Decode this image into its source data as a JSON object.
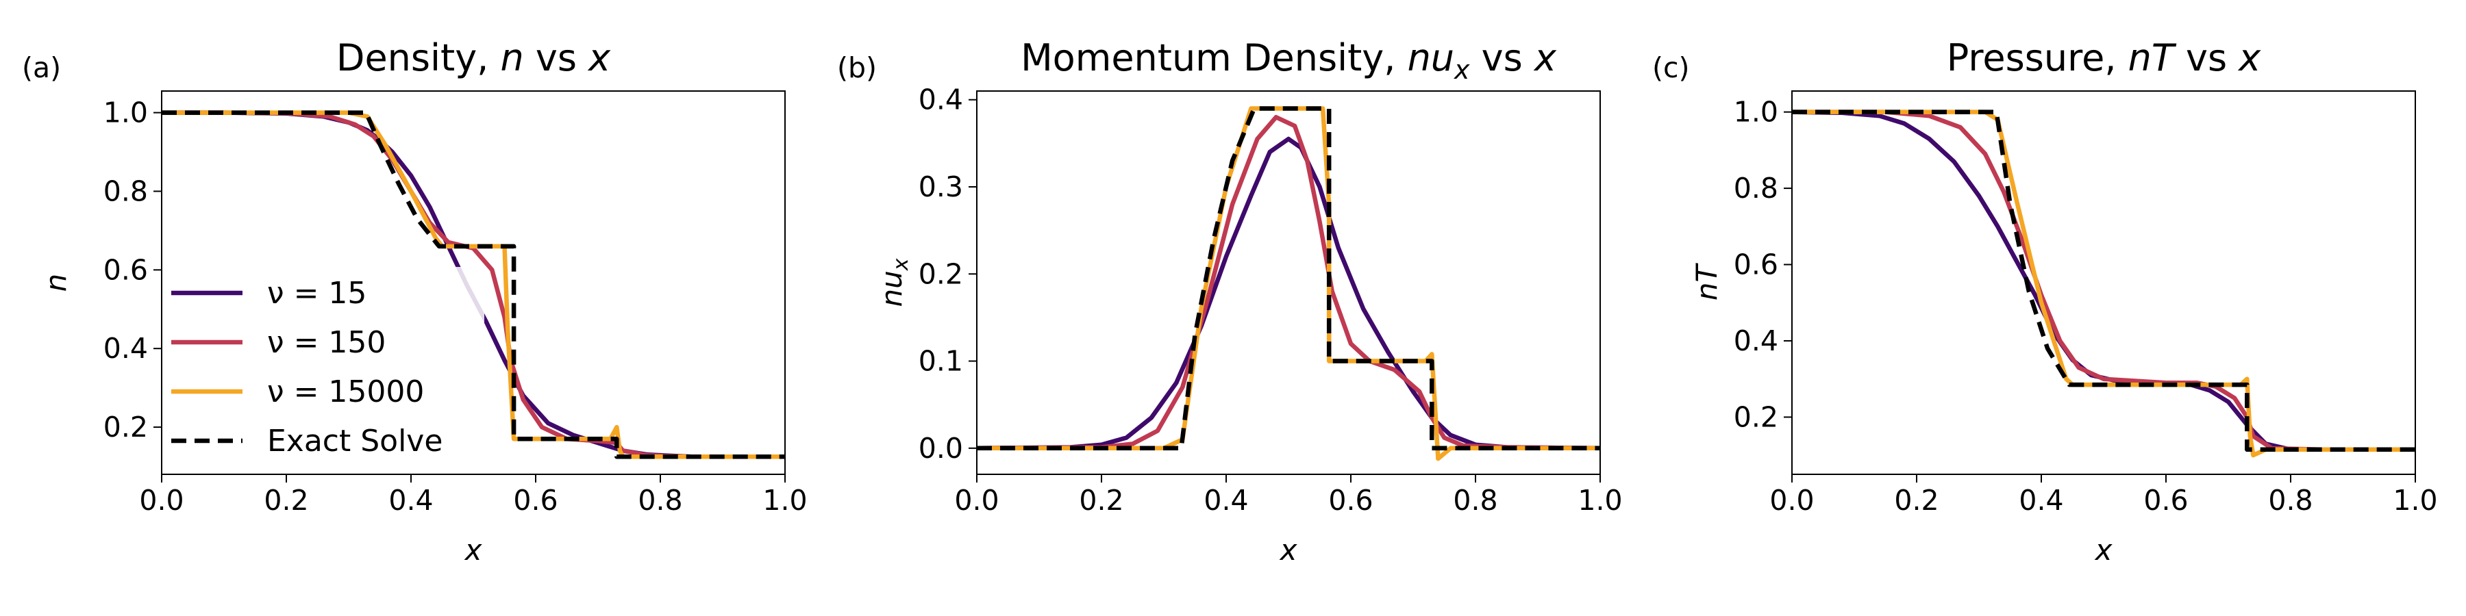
{
  "colors": {
    "nu15": "#3f0a6b",
    "nu150": "#c03a52",
    "nu15000": "#f5a623",
    "exact": "#000000"
  },
  "chart_data": [
    {
      "type": "line",
      "panel_label": "(a)",
      "title": {
        "pre": "Density, ",
        "var": "n",
        "var_sub": "",
        "post": " vs ",
        "xvar": "x"
      },
      "xlabel": "x",
      "ylabel": {
        "var": "n",
        "sub": ""
      },
      "xlim": [
        0.0,
        1.0
      ],
      "ylim": [
        0.08,
        1.055
      ],
      "xticks": [
        "0.0",
        "0.2",
        "0.4",
        "0.6",
        "0.8",
        "1.0"
      ],
      "yticks": [
        "0.2",
        "0.4",
        "0.6",
        "0.8",
        "1.0"
      ],
      "legend": {
        "placement": "lower-left",
        "entries": [
          {
            "key": "nu15",
            "label": "ν = 15"
          },
          {
            "key": "nu150",
            "label": "ν = 150"
          },
          {
            "key": "nu15000",
            "label": "ν = 15000"
          },
          {
            "key": "exact",
            "label": "Exact Solve"
          }
        ]
      },
      "series": [
        {
          "key": "nu15",
          "x": [
            0,
            0.1,
            0.2,
            0.26,
            0.3,
            0.33,
            0.35,
            0.37,
            0.4,
            0.43,
            0.46,
            0.49,
            0.52,
            0.55,
            0.58,
            0.62,
            0.66,
            0.7,
            0.74,
            0.78,
            0.85,
            1.0
          ],
          "y": [
            1.0,
            1.0,
            0.998,
            0.99,
            0.975,
            0.955,
            0.93,
            0.9,
            0.84,
            0.76,
            0.66,
            0.56,
            0.47,
            0.37,
            0.28,
            0.21,
            0.18,
            0.16,
            0.14,
            0.13,
            0.125,
            0.125
          ]
        },
        {
          "key": "nu150",
          "x": [
            0,
            0.1,
            0.2,
            0.27,
            0.31,
            0.34,
            0.37,
            0.4,
            0.43,
            0.46,
            0.5,
            0.53,
            0.55,
            0.56,
            0.58,
            0.61,
            0.65,
            0.7,
            0.73,
            0.74,
            0.78,
            0.85,
            1.0
          ],
          "y": [
            1.0,
            1.0,
            0.999,
            0.99,
            0.97,
            0.94,
            0.88,
            0.8,
            0.72,
            0.67,
            0.655,
            0.6,
            0.48,
            0.37,
            0.27,
            0.2,
            0.17,
            0.165,
            0.16,
            0.14,
            0.128,
            0.125,
            0.125
          ]
        },
        {
          "key": "nu15000",
          "x": [
            0,
            0.15,
            0.25,
            0.3,
            0.33,
            0.36,
            0.4,
            0.44,
            0.45,
            0.55,
            0.555,
            0.565,
            0.57,
            0.64,
            0.72,
            0.73,
            0.735,
            0.74,
            0.76,
            0.85,
            1.0
          ],
          "y": [
            1.0,
            1.0,
            1.0,
            1.0,
            0.99,
            0.915,
            0.8,
            0.68,
            0.66,
            0.66,
            0.45,
            0.17,
            0.17,
            0.17,
            0.17,
            0.2,
            0.14,
            0.125,
            0.125,
            0.125,
            0.125
          ]
        },
        {
          "key": "exact",
          "x": [
            0,
            0.328,
            0.35,
            0.38,
            0.41,
            0.445,
            0.565,
            0.565,
            0.73,
            0.73,
            1.0
          ],
          "y": [
            1.0,
            1.0,
            0.92,
            0.82,
            0.73,
            0.66,
            0.66,
            0.17,
            0.17,
            0.125,
            0.125
          ]
        }
      ]
    },
    {
      "type": "line",
      "panel_label": "(b)",
      "title": {
        "pre": "Momentum Density, ",
        "var": "nu",
        "var_sub": "x",
        "post": " vs ",
        "xvar": "x"
      },
      "xlabel": "x",
      "ylabel": {
        "var": "nu",
        "sub": "x"
      },
      "xlim": [
        0.0,
        1.0
      ],
      "ylim": [
        -0.03,
        0.41
      ],
      "xticks": [
        "0.0",
        "0.2",
        "0.4",
        "0.6",
        "0.8",
        "1.0"
      ],
      "yticks": [
        "0.0",
        "0.1",
        "0.2",
        "0.3",
        "0.4"
      ],
      "series": [
        {
          "key": "nu15",
          "x": [
            0,
            0.15,
            0.2,
            0.24,
            0.28,
            0.32,
            0.36,
            0.4,
            0.44,
            0.47,
            0.5,
            0.52,
            0.55,
            0.58,
            0.62,
            0.66,
            0.7,
            0.73,
            0.76,
            0.8,
            0.85,
            1.0
          ],
          "y": [
            0,
            0.001,
            0.004,
            0.012,
            0.035,
            0.075,
            0.14,
            0.22,
            0.29,
            0.34,
            0.355,
            0.345,
            0.3,
            0.23,
            0.16,
            0.11,
            0.065,
            0.035,
            0.015,
            0.004,
            0.001,
            0
          ]
        },
        {
          "key": "nu150",
          "x": [
            0,
            0.2,
            0.25,
            0.29,
            0.33,
            0.37,
            0.41,
            0.45,
            0.48,
            0.51,
            0.53,
            0.55,
            0.57,
            0.6,
            0.63,
            0.67,
            0.71,
            0.73,
            0.75,
            0.78,
            0.85,
            1.0
          ],
          "y": [
            0,
            0.001,
            0.005,
            0.02,
            0.07,
            0.17,
            0.28,
            0.355,
            0.38,
            0.37,
            0.33,
            0.26,
            0.18,
            0.12,
            0.1,
            0.09,
            0.065,
            0.035,
            0.012,
            0.003,
            0.001,
            0
          ]
        },
        {
          "key": "nu15000",
          "x": [
            0,
            0.3,
            0.33,
            0.36,
            0.4,
            0.44,
            0.555,
            0.565,
            0.565,
            0.72,
            0.73,
            0.735,
            0.74,
            0.76,
            1.0
          ],
          "y": [
            0,
            0,
            0.01,
            0.16,
            0.3,
            0.39,
            0.39,
            0.28,
            0.1,
            0.1,
            0.108,
            0.05,
            -0.012,
            0,
            0
          ]
        },
        {
          "key": "exact",
          "x": [
            0,
            0.328,
            0.35,
            0.38,
            0.41,
            0.445,
            0.565,
            0.565,
            0.73,
            0.73,
            1.0
          ],
          "y": [
            0,
            0,
            0.13,
            0.24,
            0.33,
            0.39,
            0.39,
            0.1,
            0.1,
            0,
            0
          ]
        }
      ]
    },
    {
      "type": "line",
      "panel_label": "(c)",
      "title": {
        "pre": "Pressure, ",
        "var": "nT",
        "var_sub": "",
        "post": " vs ",
        "xvar": "x"
      },
      "xlabel": "x",
      "ylabel": {
        "var": "nT",
        "sub": ""
      },
      "xlim": [
        0.0,
        1.0
      ],
      "ylim": [
        0.05,
        1.055
      ],
      "xticks": [
        "0.0",
        "0.2",
        "0.4",
        "0.6",
        "0.8",
        "1.0"
      ],
      "yticks": [
        "0.2",
        "0.4",
        "0.6",
        "0.8",
        "1.0"
      ],
      "series": [
        {
          "key": "nu15",
          "x": [
            0,
            0.08,
            0.14,
            0.18,
            0.22,
            0.26,
            0.3,
            0.33,
            0.36,
            0.39,
            0.42,
            0.45,
            0.48,
            0.52,
            0.56,
            0.6,
            0.64,
            0.67,
            0.7,
            0.73,
            0.76,
            0.8,
            1.0
          ],
          "y": [
            1.0,
            0.998,
            0.99,
            0.97,
            0.93,
            0.87,
            0.78,
            0.7,
            0.61,
            0.52,
            0.42,
            0.35,
            0.31,
            0.295,
            0.29,
            0.29,
            0.285,
            0.27,
            0.24,
            0.18,
            0.13,
            0.115,
            0.115
          ]
        },
        {
          "key": "nu150",
          "x": [
            0,
            0.15,
            0.22,
            0.27,
            0.31,
            0.34,
            0.37,
            0.4,
            0.43,
            0.46,
            0.5,
            0.55,
            0.6,
            0.65,
            0.68,
            0.71,
            0.73,
            0.74,
            0.77,
            0.85,
            1.0
          ],
          "y": [
            1.0,
            1.0,
            0.99,
            0.96,
            0.89,
            0.79,
            0.66,
            0.52,
            0.4,
            0.33,
            0.3,
            0.295,
            0.29,
            0.29,
            0.28,
            0.25,
            0.2,
            0.15,
            0.118,
            0.115,
            0.115
          ]
        },
        {
          "key": "nu15000",
          "x": [
            0,
            0.25,
            0.31,
            0.33,
            0.36,
            0.4,
            0.44,
            0.45,
            0.72,
            0.73,
            0.735,
            0.74,
            0.76,
            1.0
          ],
          "y": [
            1.0,
            1.0,
            1.0,
            0.98,
            0.77,
            0.5,
            0.3,
            0.285,
            0.285,
            0.3,
            0.15,
            0.1,
            0.115,
            0.115
          ]
        },
        {
          "key": "exact",
          "x": [
            0,
            0.328,
            0.35,
            0.38,
            0.41,
            0.445,
            0.73,
            0.73,
            1.0
          ],
          "y": [
            1.0,
            1.0,
            0.76,
            0.53,
            0.38,
            0.285,
            0.285,
            0.115,
            0.115
          ]
        }
      ]
    }
  ]
}
